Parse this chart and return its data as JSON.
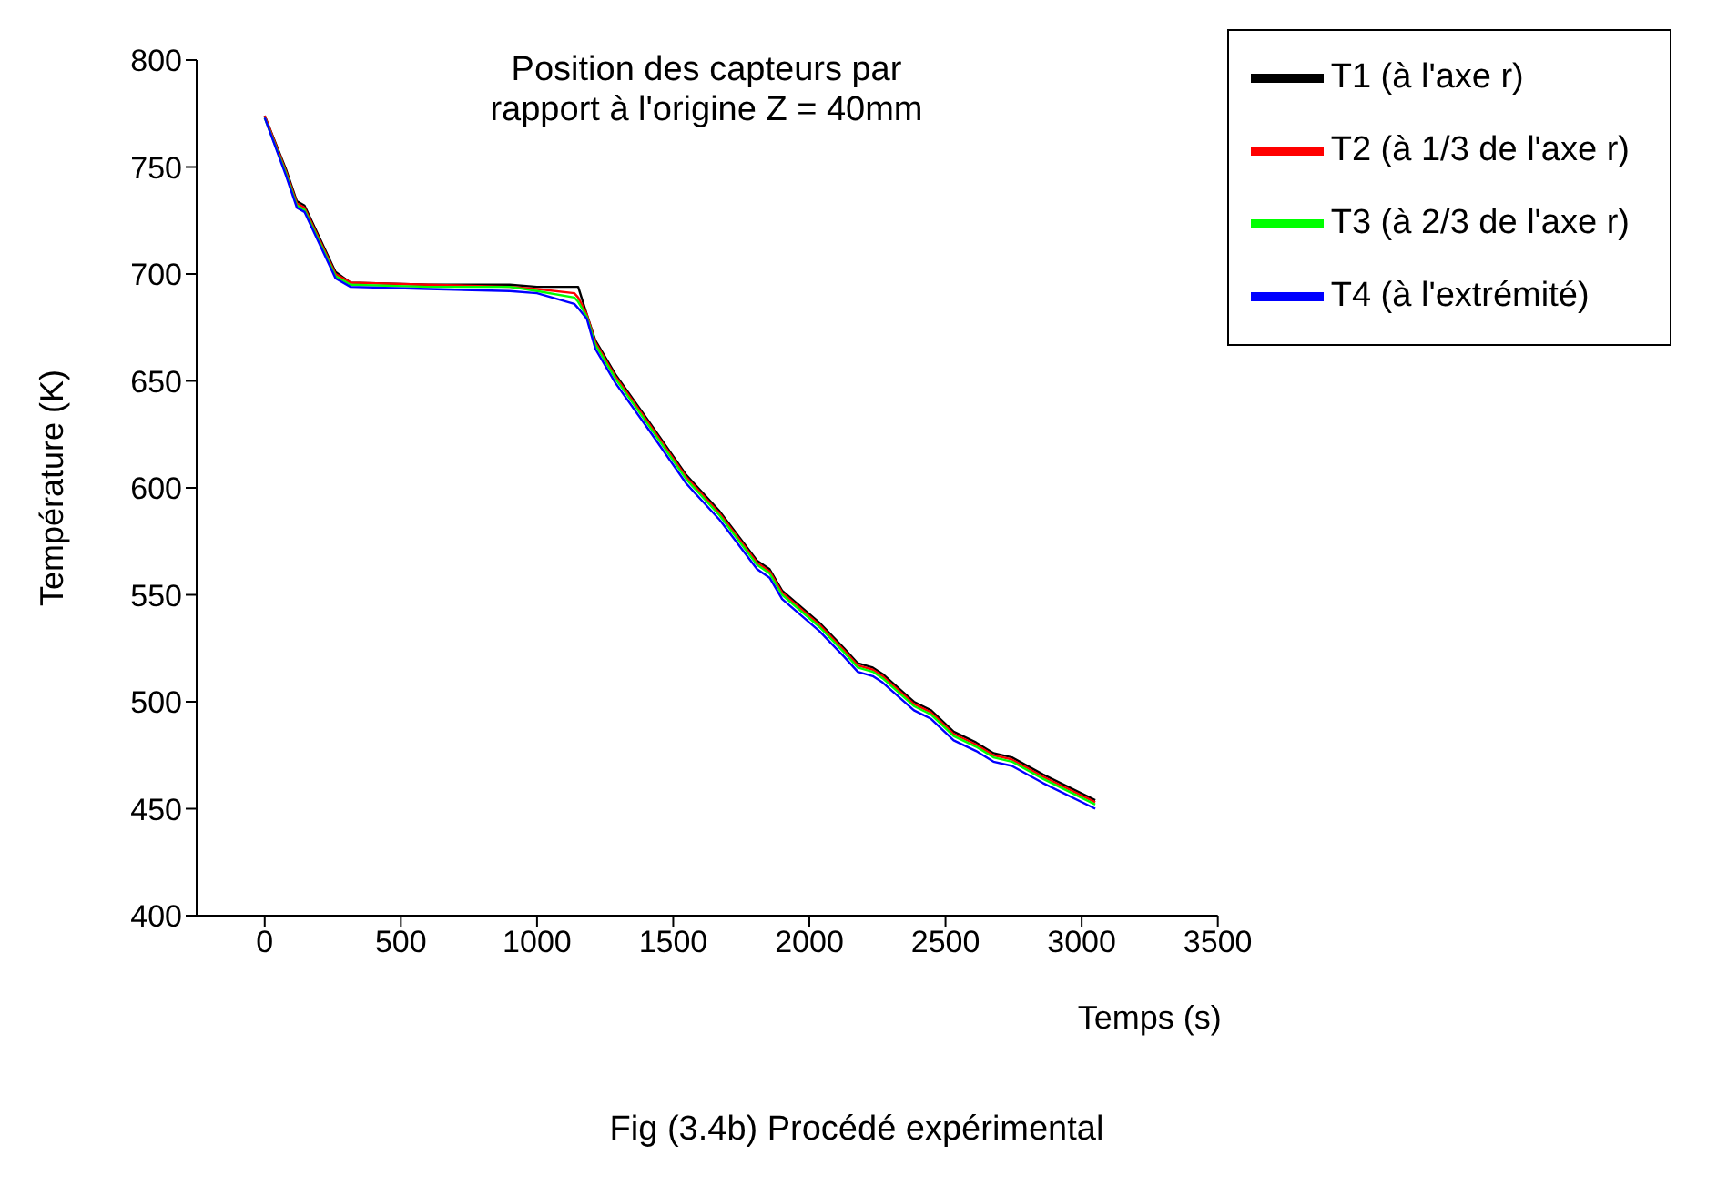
{
  "chart_data": {
    "type": "line",
    "xlabel": "Temps (s)",
    "ylabel": "Température (K)",
    "annotations": [
      "Position des capteurs par\nrapport à l'origine Z = 40mm",
      "Fig (3.4b) Procédé expérimental"
    ],
    "x": [
      0,
      78,
      118,
      146,
      260,
      315,
      600,
      900,
      1000,
      1137,
      1151,
      1183,
      1214,
      1288,
      1411,
      1548,
      1671,
      1808,
      1854,
      1900,
      2037,
      2128,
      2178,
      2233,
      2269,
      2384,
      2447,
      2530,
      2612,
      2676,
      2744,
      2858,
      3050
    ],
    "series": [
      {
        "name": "T1 (à l'axe r)",
        "color": "#000000",
        "values": [
          774,
          749,
          734,
          732,
          701,
          696,
          695,
          695,
          694,
          694,
          694,
          681,
          669,
          653,
          631,
          606,
          589,
          566,
          562,
          552,
          537,
          525,
          518,
          516,
          513,
          500,
          496,
          486,
          481,
          476,
          474,
          466,
          454
        ]
      },
      {
        "name": "T2 (à 1/3 de l'axe r)",
        "color": "#ff0000",
        "values": [
          774,
          748,
          733,
          731,
          700,
          696,
          695,
          694,
          693,
          691,
          689,
          681,
          668,
          652,
          630,
          605,
          588,
          565,
          561,
          551,
          536,
          524,
          517,
          515,
          512,
          499,
          495,
          485,
          480,
          475,
          473,
          465,
          453
        ]
      },
      {
        "name": "T3 (à 2/3 de l'axe r)",
        "color": "#00ff00",
        "values": [
          773,
          747,
          732,
          730,
          699,
          695,
          694,
          694,
          692,
          689,
          687,
          680,
          667,
          651,
          629,
          604,
          587,
          564,
          560,
          550,
          535,
          523,
          516,
          514,
          511,
          498,
          494,
          484,
          479,
          474,
          472,
          464,
          452
        ]
      },
      {
        "name": "T4 (à l'extrémité)",
        "color": "#0000ff",
        "values": [
          773,
          746,
          731,
          729,
          698,
          694,
          693,
          692,
          691,
          686,
          684,
          679,
          665,
          649,
          627,
          602,
          585,
          562,
          558,
          548,
          533,
          521,
          514,
          512,
          509,
          496,
          492,
          482,
          477,
          472,
          470,
          462,
          450
        ]
      }
    ],
    "xlim": [
      -250,
      3500
    ],
    "xticks": [
      0,
      500,
      1000,
      1500,
      2000,
      2500,
      3000,
      3500
    ],
    "ylim": [
      400,
      800
    ],
    "yticks": [
      400,
      450,
      500,
      550,
      600,
      650,
      700,
      750,
      800
    ],
    "grid": false,
    "legend": "top right",
    "marker": "none",
    "line_style": "solid"
  }
}
